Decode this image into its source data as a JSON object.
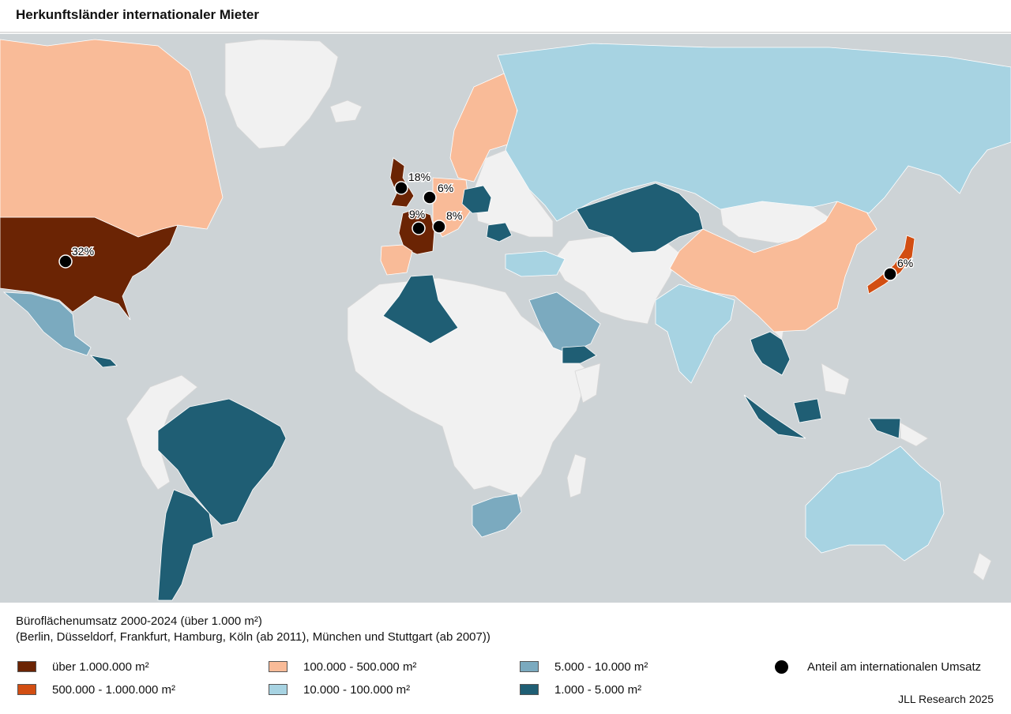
{
  "title": "Herkunftsländer internationaler Mieter",
  "colors": {
    "ocean": "#cdd3d6",
    "land_nodata": "#f1f1f1",
    "over_1m": "#6b2404",
    "c500k_1m": "#d24e12",
    "c100k_500k": "#f9bb98",
    "c10k_100k": "#a7d3e2",
    "c5k_10k": "#7baabf",
    "c1k_5k": "#1f5e74",
    "dot": "#000000"
  },
  "legend": {
    "heading_line1": "Büroflächenumsatz 2000-2024 (über 1.000 m²)",
    "heading_line2": "(Berlin, Düsseldorf, Frankfurt, Hamburg, Köln (ab 2011), München und Stuttgart (ab 2007))",
    "classes": [
      {
        "key": "over_1m",
        "label": "über 1.000.000 m²"
      },
      {
        "key": "c500k_1m",
        "label": "500.000 - 1.000.000 m²"
      },
      {
        "key": "c100k_500k",
        "label": "100.000 - 500.000 m²"
      },
      {
        "key": "c10k_100k",
        "label": "10.000 - 100.000 m²"
      },
      {
        "key": "c5k_10k",
        "label": "5.000 - 10.000 m²"
      },
      {
        "key": "c1k_5k",
        "label": "1.000 - 5.000 m²"
      }
    ],
    "dot_label": "Anteil am internationalen Umsatz"
  },
  "share_markers": [
    {
      "label": "32%"
    },
    {
      "label": "18%"
    },
    {
      "label": "6%"
    },
    {
      "label": "9%"
    },
    {
      "label": "8%"
    },
    {
      "label": "6%"
    }
  ],
  "credit": "JLL Research 2025"
}
